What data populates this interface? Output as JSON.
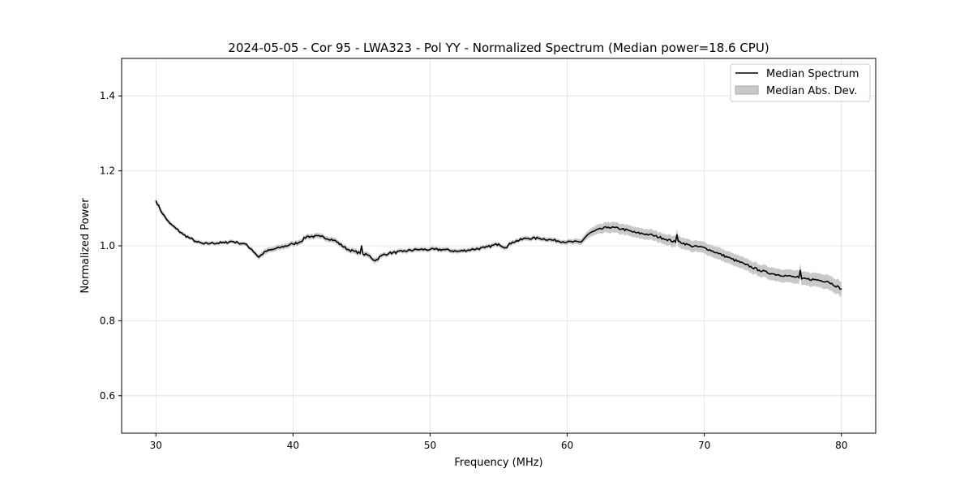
{
  "chart_data": {
    "type": "line",
    "title": "2024-05-05 - Cor 95 - LWA323 - Pol YY - Normalized Spectrum (Median power=18.6 CPU)",
    "xlabel": "Frequency (MHz)",
    "ylabel": "Normalized Power",
    "xlim": [
      27.5,
      82.5
    ],
    "ylim": [
      0.5,
      1.5
    ],
    "xticks": [
      30,
      40,
      50,
      60,
      70,
      80
    ],
    "yticks": [
      0.6,
      0.8,
      1.0,
      1.2,
      1.4
    ],
    "ytick_labels": [
      "0.6",
      "0.8",
      "1.0",
      "1.2",
      "1.4"
    ],
    "grid": true,
    "legend_position": "top-right",
    "legend": [
      "Median Spectrum",
      "Median Abs. Dev."
    ],
    "colors": {
      "line": "#000000",
      "band": "#bfbfbf"
    },
    "x": [
      30,
      30.5,
      31,
      31.5,
      32,
      32.5,
      33,
      33.5,
      34,
      35,
      35.5,
      36,
      36.5,
      37,
      37.5,
      38,
      38.5,
      39,
      40,
      40.5,
      41,
      42,
      43,
      44,
      44.5,
      44.9,
      45,
      45.1,
      45.5,
      46,
      46.5,
      47,
      48,
      49,
      50,
      51,
      52,
      53,
      54,
      55,
      55.5,
      56,
      57,
      58,
      59,
      60,
      61,
      61.5,
      62,
      63,
      64,
      65,
      66,
      67,
      67.9,
      68,
      68.1,
      69,
      70,
      71,
      72,
      73,
      74,
      75,
      76,
      76.9,
      77,
      77.1,
      78,
      79,
      80
    ],
    "values": [
      1.12,
      1.085,
      1.06,
      1.045,
      1.03,
      1.02,
      1.01,
      1.005,
      1.007,
      1.008,
      1.012,
      1.008,
      1.005,
      0.99,
      0.97,
      0.985,
      0.99,
      0.995,
      1.005,
      1.01,
      1.025,
      1.025,
      1.015,
      0.99,
      0.985,
      0.98,
      1.0,
      0.978,
      0.975,
      0.96,
      0.975,
      0.98,
      0.985,
      0.99,
      0.99,
      0.99,
      0.985,
      0.99,
      0.995,
      1.005,
      0.995,
      1.01,
      1.02,
      1.02,
      1.015,
      1.01,
      1.01,
      1.03,
      1.04,
      1.05,
      1.045,
      1.035,
      1.03,
      1.02,
      1.01,
      1.03,
      1.012,
      1.0,
      0.995,
      0.98,
      0.965,
      0.95,
      0.935,
      0.925,
      0.92,
      0.915,
      0.935,
      0.912,
      0.91,
      0.905,
      0.885
    ],
    "mad": [
      0.008,
      0.007,
      0.006,
      0.005,
      0.005,
      0.005,
      0.005,
      0.005,
      0.005,
      0.005,
      0.005,
      0.005,
      0.005,
      0.006,
      0.007,
      0.007,
      0.007,
      0.007,
      0.007,
      0.007,
      0.007,
      0.007,
      0.007,
      0.007,
      0.007,
      0.007,
      0.007,
      0.007,
      0.007,
      0.007,
      0.006,
      0.006,
      0.006,
      0.006,
      0.006,
      0.006,
      0.006,
      0.006,
      0.006,
      0.006,
      0.006,
      0.006,
      0.006,
      0.006,
      0.006,
      0.006,
      0.008,
      0.01,
      0.012,
      0.014,
      0.014,
      0.014,
      0.014,
      0.014,
      0.015,
      0.015,
      0.015,
      0.015,
      0.015,
      0.016,
      0.016,
      0.016,
      0.016,
      0.017,
      0.017,
      0.018,
      0.018,
      0.018,
      0.018,
      0.019,
      0.02
    ]
  }
}
